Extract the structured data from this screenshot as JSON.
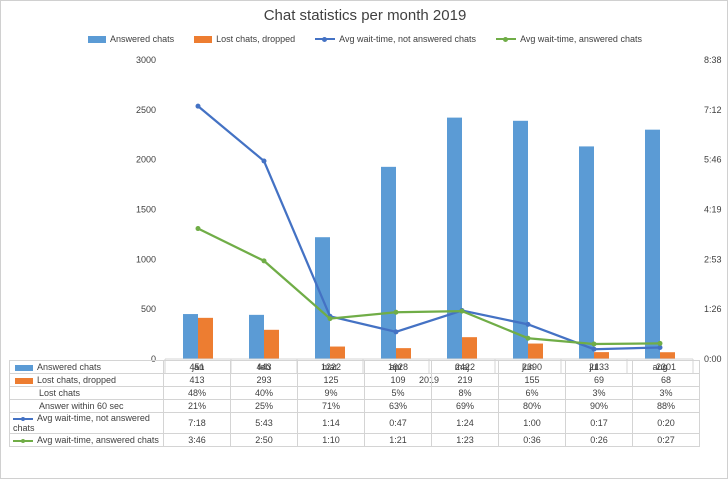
{
  "chart_data": {
    "type": "bar",
    "title": "Chat statistics per month 2019",
    "xlabel": "2019",
    "categories": [
      "jan",
      "feb",
      "mar",
      "apr",
      "maj",
      "jun",
      "jul",
      "aug"
    ],
    "y_left_ticks": [
      "0",
      "500",
      "1000",
      "1500",
      "2000",
      "2500",
      "3000"
    ],
    "y_left_lim": [
      0,
      3000
    ],
    "y_right_ticks": [
      "0:00",
      "1:26",
      "2:53",
      "4:19",
      "5:46",
      "7:12",
      "8:38"
    ],
    "y_right_lim_seconds": [
      0,
      518
    ],
    "legend_position": "top",
    "grid": false,
    "series": [
      {
        "name": "Answered chats",
        "kind": "bar",
        "axis": "left",
        "color": "#5b9bd5",
        "values": [
          451,
          443,
          1222,
          1928,
          2422,
          2390,
          2133,
          2301
        ],
        "labels": [
          "451",
          "443",
          "1222",
          "1928",
          "2422",
          "2390",
          "2133",
          "2301"
        ]
      },
      {
        "name": "Lost chats, dropped",
        "kind": "bar",
        "axis": "left",
        "color": "#ed7d31",
        "values": [
          413,
          293,
          125,
          109,
          219,
          155,
          69,
          68
        ],
        "labels": [
          "413",
          "293",
          "125",
          "109",
          "219",
          "155",
          "69",
          "68"
        ]
      },
      {
        "name": "Lost chats",
        "kind": "table-only",
        "labels": [
          "48%",
          "40%",
          "9%",
          "5%",
          "8%",
          "6%",
          "3%",
          "3%"
        ]
      },
      {
        "name": "Answer within 60 sec",
        "kind": "table-only",
        "labels": [
          "21%",
          "25%",
          "71%",
          "63%",
          "69%",
          "80%",
          "90%",
          "88%"
        ]
      },
      {
        "name": "Avg wait-time, not answered chats",
        "kind": "line",
        "axis": "right",
        "color": "#4472c4",
        "values_seconds": [
          438,
          343,
          74,
          47,
          84,
          60,
          17,
          20
        ],
        "labels": [
          "7:18",
          "5:43",
          "1:14",
          "0:47",
          "1:24",
          "1:00",
          "0:17",
          "0:20"
        ]
      },
      {
        "name": "Avg wait-time, answered chats",
        "kind": "line",
        "axis": "right",
        "color": "#70ad47",
        "values_seconds": [
          226,
          170,
          70,
          81,
          83,
          36,
          26,
          27
        ],
        "labels": [
          "3:46",
          "2:50",
          "1:10",
          "1:21",
          "1:23",
          "0:36",
          "0:26",
          "0:27"
        ]
      }
    ]
  }
}
